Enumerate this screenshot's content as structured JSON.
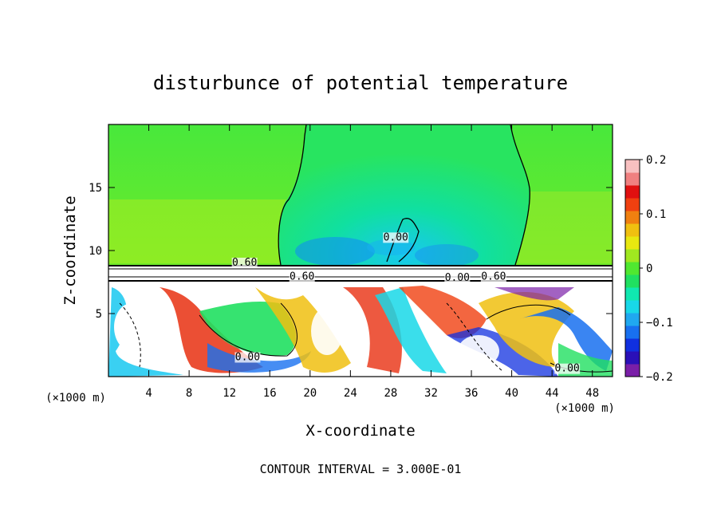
{
  "chart_data": {
    "type": "heatmap",
    "title": "disturbunce of potential temperature",
    "xlabel": "X-coordinate",
    "ylabel": "Z-coordinate",
    "x_unit": "(×1000 m)",
    "z_unit": "(×1000 m)",
    "xlim": [
      0,
      50
    ],
    "ylim": [
      0,
      20
    ],
    "x_ticks": [
      4,
      8,
      12,
      16,
      20,
      24,
      28,
      32,
      36,
      40,
      44,
      48
    ],
    "y_ticks": [
      5,
      10,
      15
    ],
    "colorbar": {
      "range": [
        -0.2,
        0.2
      ],
      "tick_values": [
        -0.2,
        -0.1,
        0,
        0.1,
        0.2
      ],
      "tick_labels": [
        "−0.2",
        "−0.1",
        "0",
        "0.1",
        "0.2"
      ],
      "colors": [
        "#7a1fa8",
        "#2a10b8",
        "#1030e0",
        "#1870f0",
        "#20a8f0",
        "#18d8e8",
        "#10e8b0",
        "#20e060",
        "#50e830",
        "#a0e820",
        "#e8e810",
        "#f0c010",
        "#f08010",
        "#f04010",
        "#e01010",
        "#f08080",
        "#f8c0c0"
      ]
    },
    "contour_labels": [
      {
        "text": "0.60",
        "x": 13.5,
        "z": 8.8
      },
      {
        "text": "0.60",
        "x": 19.2,
        "z": 7.7
      },
      {
        "text": "0.00",
        "x": 34.6,
        "z": 7.6
      },
      {
        "text": "0.60",
        "x": 38.2,
        "z": 7.7
      },
      {
        "text": "0.00",
        "x": 28.5,
        "z": 10.8
      },
      {
        "text": "0.00",
        "x": 13.8,
        "z": 1.3
      },
      {
        "text": "0.00",
        "x": 45.5,
        "z": 0.4
      }
    ],
    "footnote": "CONTOUR INTERVAL = 3.000E-01"
  }
}
